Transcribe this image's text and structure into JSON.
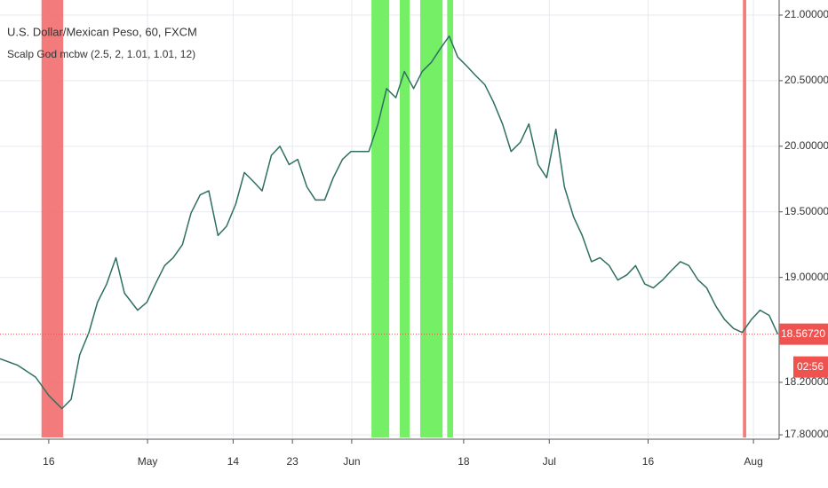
{
  "chart_data": {
    "type": "line",
    "title": "U.S. Dollar/Mexican Peso, 60, FXCM",
    "subtitle": "Scalp God mcbw (2.5, 2, 1.01, 1.01, 12)",
    "x": [
      98.6,
      101.3,
      104.0,
      106.0,
      108.0,
      109.4,
      110.7,
      112.1,
      113.4,
      114.8,
      116.2,
      117.5,
      119.5,
      120.9,
      122.2,
      123.6,
      124.9,
      126.3,
      127.6,
      129.0,
      130.3,
      131.7,
      133.0,
      134.4,
      135.7,
      137.1,
      138.4,
      139.8,
      141.1,
      142.5,
      143.8,
      145.2,
      146.5,
      147.9,
      149.2,
      150.6,
      151.9,
      153.3,
      154.6,
      156.0,
      157.3,
      158.7,
      160.0,
      161.4,
      162.7,
      164.1,
      165.4,
      166.8,
      168.1,
      169.5,
      170.8,
      172.2,
      173.5,
      174.9,
      176.2,
      177.6,
      178.9,
      180.3,
      181.6,
      183.0,
      184.3,
      185.7,
      187.0,
      188.4,
      189.7,
      191.1,
      192.4,
      193.8,
      195.1,
      196.5,
      197.8,
      199.2,
      200.5,
      201.9,
      203.2,
      204.6,
      205.9,
      207.3,
      208.6,
      210.0,
      211.3,
      212.7,
      214.0,
      215.4,
      216.7
    ],
    "series": [
      {
        "name": "USD/MXN",
        "color": "#2f6f62",
        "values": [
          18.38,
          18.33,
          18.24,
          18.1,
          18.0,
          18.07,
          18.41,
          18.58,
          18.81,
          18.95,
          19.15,
          18.88,
          18.75,
          18.81,
          18.95,
          19.09,
          19.15,
          19.25,
          19.49,
          19.63,
          19.66,
          19.32,
          19.39,
          19.56,
          19.8,
          19.73,
          19.66,
          19.93,
          20.0,
          19.86,
          19.9,
          19.69,
          19.59,
          19.59,
          19.76,
          19.9,
          19.96,
          19.96,
          19.96,
          20.17,
          20.44,
          20.37,
          20.57,
          20.44,
          20.57,
          20.64,
          20.74,
          20.84,
          20.68,
          20.61,
          20.54,
          20.47,
          20.34,
          20.17,
          19.96,
          20.03,
          20.17,
          19.86,
          19.76,
          20.13,
          19.69,
          19.46,
          19.32,
          19.12,
          19.15,
          19.09,
          18.98,
          19.02,
          19.09,
          18.95,
          18.92,
          18.98,
          19.05,
          19.12,
          19.09,
          18.98,
          18.92,
          18.78,
          18.68,
          18.61,
          18.58,
          18.68,
          18.75,
          18.71,
          18.5672
        ]
      }
    ],
    "highlights": [
      {
        "start": 104.9,
        "end": 108.2,
        "color": "#f26d6d"
      },
      {
        "start": 155.0,
        "end": 157.7,
        "color": "#66ee55"
      },
      {
        "start": 159.3,
        "end": 160.8,
        "color": "#66ee55"
      },
      {
        "start": 162.4,
        "end": 165.8,
        "color": "#66ee55"
      },
      {
        "start": 166.5,
        "end": 167.4,
        "color": "#66ee55"
      },
      {
        "start": 211.4,
        "end": 211.9,
        "color": "#f26d6d"
      }
    ],
    "xlim": [
      98.6,
      216.9
    ],
    "ylim": [
      17.78,
      21.115
    ],
    "xticks": [
      {
        "value": 106,
        "label": "16"
      },
      {
        "value": 121,
        "label": "May"
      },
      {
        "value": 134,
        "label": "14"
      },
      {
        "value": 143,
        "label": "23"
      },
      {
        "value": 152,
        "label": "Jun"
      },
      {
        "value": 169,
        "label": "18"
      },
      {
        "value": 182,
        "label": "Jul"
      },
      {
        "value": 197,
        "label": "16"
      },
      {
        "value": 213,
        "label": "Aug"
      }
    ],
    "yticks": [
      {
        "value": 21,
        "label": "21.00000"
      },
      {
        "value": 20.5,
        "label": "20.50000"
      },
      {
        "value": 20,
        "label": "20.00000"
      },
      {
        "value": 19.5,
        "label": "19.50000"
      },
      {
        "value": 19,
        "label": "19.00000"
      },
      {
        "value": 18.2,
        "label": "18.20000"
      },
      {
        "value": 17.8,
        "label": "17.80000"
      }
    ],
    "grid": true,
    "last_price": {
      "value": 18.5672,
      "label": "18.56720",
      "color": "#ef5350"
    },
    "countdown": "02:56"
  }
}
